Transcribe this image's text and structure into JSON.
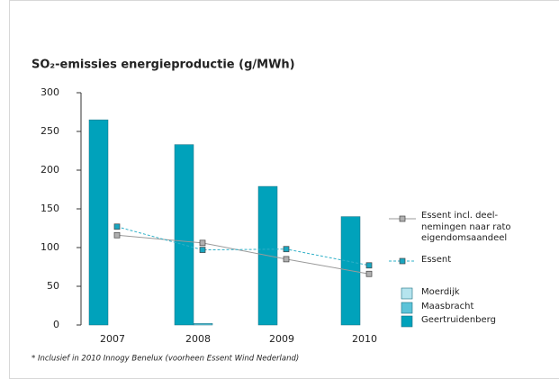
{
  "chart_data": {
    "type": "bar",
    "title": "SO₂-emissies energieproductie (g/MWh)",
    "categories": [
      "2007",
      "2008",
      "2009",
      "2010"
    ],
    "series": [
      {
        "name": "Moerdijk",
        "color": "#b5e4ee",
        "values": [
          0,
          0,
          0,
          0
        ]
      },
      {
        "name": "Maasbracht",
        "color": "#5cc3d8",
        "values": [
          0,
          2,
          0,
          0
        ]
      },
      {
        "name": "Geertruidenberg",
        "color": "#00a2bb",
        "values": [
          265,
          233,
          179,
          140
        ]
      }
    ],
    "lines": [
      {
        "name": "Essent incl. deel-\nnemingen naar rato\neigendomsaandeel",
        "color": "#9a9a9a",
        "marker": "#b0b0b0",
        "dashed": false,
        "values": [
          116,
          106,
          85,
          66
        ]
      },
      {
        "name": "Essent",
        "color": "#2fb0c8",
        "marker": "#1aa6c0",
        "dashed": true,
        "values": [
          127,
          97,
          98,
          77
        ]
      }
    ],
    "ylim": [
      0,
      300
    ],
    "yticks": [
      0,
      50,
      100,
      150,
      200,
      250,
      300
    ],
    "footnote": "* Inclusief in 2010 Innogy Benelux (voorheen Essent Wind Nederland)"
  }
}
